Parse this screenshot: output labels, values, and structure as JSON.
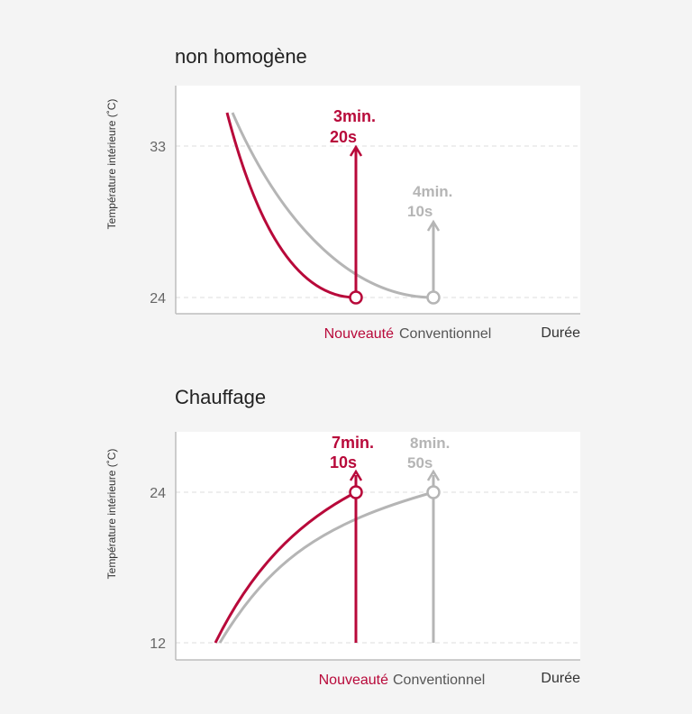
{
  "colors": {
    "new": "#b8093a",
    "conventional": "#b5b5b5",
    "axis": "#bdbdbd",
    "grid": "#dddddd",
    "text": "#222222",
    "muted": "#666666"
  },
  "chart_data": [
    {
      "type": "line",
      "title": "non homogène",
      "ylabel": "Température intérieure (˚C)",
      "xlabel": "Durée",
      "yticks": [
        "33",
        "24"
      ],
      "grid": true,
      "series": [
        {
          "name": "Nouveauté",
          "start_y": 35,
          "end_y": 24,
          "time_label": [
            "3min.",
            "20s"
          ]
        },
        {
          "name": "Conventionnel",
          "start_y": 35,
          "end_y": 24,
          "time_label": [
            "4min.",
            "10s"
          ]
        }
      ]
    },
    {
      "type": "line",
      "title": "Chauffage",
      "ylabel": "Température intérieure (˚C)",
      "xlabel": "Durée",
      "yticks": [
        "24",
        "12"
      ],
      "grid": true,
      "series": [
        {
          "name": "Nouveauté",
          "start_y": 12,
          "end_y": 24,
          "time_label": [
            "7min.",
            "10s"
          ]
        },
        {
          "name": "Conventionnel",
          "start_y": 12,
          "end_y": 24,
          "time_label": [
            "8min.",
            "50s"
          ]
        }
      ]
    }
  ]
}
